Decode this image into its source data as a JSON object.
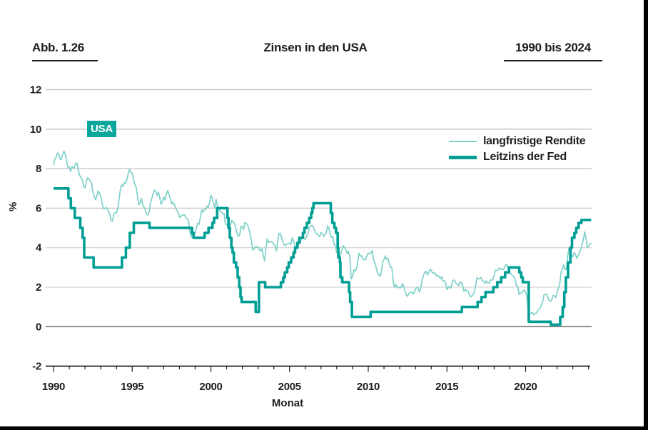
{
  "page": {
    "background": "#ffffff",
    "edge_bar_color": "#000000"
  },
  "header": {
    "fig_label": "Abb. 1.26",
    "title": "Zinsen in den USA",
    "range_label": "1990 bis 2024"
  },
  "badge": {
    "label": "USA",
    "bg": "#0ca79c",
    "fg": "#ffffff"
  },
  "legend": [
    {
      "label": "langfristige Rendite",
      "color": "#7fd0c9",
      "thickness": 2
    },
    {
      "label": "Leitzins der Fed",
      "color": "#009e95",
      "thickness": 5
    }
  ],
  "axis": {
    "ylabel": "%",
    "xlabel": "Monat",
    "text_color": "#1d1d1b",
    "zero_line_color": "#7a7a7a",
    "grid_color_upper": "#c2c2c2",
    "grid_color_lower": "#d8d8d8"
  },
  "chart_data": {
    "type": "line",
    "title": "Zinsen in den USA",
    "xlabel": "Monat",
    "ylabel": "%",
    "ylim": [
      -2,
      12
    ],
    "xlim": [
      1990,
      2024.3
    ],
    "yticks": [
      12,
      10,
      8,
      6,
      4,
      2,
      0,
      -2
    ],
    "xticks_major": [
      1990,
      1995,
      2000,
      2005,
      2010,
      2015,
      2020
    ],
    "xticks_minor_every_years": 1,
    "grid": "horizontal",
    "legend_position": "upper right",
    "series": [
      {
        "name": "langfristige Rendite",
        "style": "line",
        "color": "#7fd0c9",
        "width": 1.7,
        "x_start": 1990.0,
        "x_step": 0.0833333,
        "values": [
          8.21,
          8.47,
          8.59,
          8.79,
          8.76,
          8.48,
          8.47,
          8.75,
          8.89,
          8.72,
          8.39,
          8.08,
          8.09,
          7.85,
          8.11,
          8.04,
          8.07,
          8.28,
          8.27,
          7.9,
          7.65,
          7.53,
          7.42,
          7.09,
          7.03,
          7.34,
          7.54,
          7.48,
          7.39,
          7.26,
          6.84,
          6.59,
          6.42,
          6.59,
          6.87,
          6.77,
          6.6,
          6.26,
          5.98,
          5.97,
          6.04,
          5.96,
          5.81,
          5.68,
          5.36,
          5.33,
          5.72,
          5.77,
          5.75,
          5.97,
          6.48,
          6.97,
          7.18,
          7.1,
          7.3,
          7.24,
          7.46,
          7.74,
          7.96,
          7.81,
          7.78,
          7.47,
          7.2,
          7.06,
          6.63,
          6.17,
          6.28,
          6.49,
          6.2,
          6.04,
          5.93,
          5.71,
          5.65,
          5.81,
          6.27,
          6.51,
          6.74,
          6.91,
          6.87,
          6.64,
          6.83,
          6.53,
          6.2,
          6.3,
          6.58,
          6.42,
          6.69,
          6.89,
          6.71,
          6.49,
          6.22,
          6.3,
          6.21,
          6.03,
          5.88,
          5.81,
          5.54,
          5.57,
          5.65,
          5.64,
          5.65,
          5.5,
          5.46,
          5.34,
          4.81,
          4.53,
          4.83,
          4.65,
          4.72,
          5.0,
          5.23,
          5.18,
          5.54,
          5.9,
          5.79,
          5.94,
          5.92,
          6.11,
          6.03,
          6.28,
          6.66,
          6.52,
          6.26,
          5.99,
          6.44,
          6.1,
          6.05,
          5.83,
          5.8,
          5.74,
          5.72,
          5.24,
          5.16,
          5.1,
          4.89,
          5.14,
          5.39,
          5.28,
          5.24,
          4.97,
          4.73,
          4.57,
          4.65,
          5.09,
          5.04,
          4.91,
          5.28,
          5.21,
          5.16,
          4.93,
          4.65,
          4.26,
          3.87,
          3.94,
          4.05,
          4.03,
          4.05,
          3.9,
          3.81,
          3.96,
          3.57,
          3.33,
          3.98,
          4.45,
          4.27,
          4.29,
          4.3,
          4.27,
          4.15,
          4.08,
          3.83,
          4.35,
          4.72,
          4.73,
          4.5,
          4.28,
          4.13,
          4.1,
          4.19,
          4.23,
          4.22,
          4.17,
          4.5,
          4.34,
          4.14,
          4.0,
          4.18,
          4.26,
          4.2,
          4.46,
          4.54,
          4.47,
          4.42,
          4.57,
          4.72,
          4.99,
          5.11,
          5.11,
          5.09,
          4.88,
          4.72,
          4.73,
          4.6,
          4.56,
          4.76,
          4.72,
          4.56,
          4.69,
          4.75,
          5.1,
          5.0,
          4.67,
          4.52,
          4.53,
          4.15,
          4.1,
          3.74,
          3.74,
          3.51,
          3.68,
          3.88,
          4.1,
          4.01,
          3.89,
          3.69,
          3.81,
          3.53,
          2.42,
          2.52,
          2.87,
          2.82,
          2.93,
          3.29,
          3.72,
          3.56,
          3.59,
          3.4,
          3.39,
          3.4,
          3.59,
          3.73,
          3.69,
          3.73,
          3.85,
          3.42,
          3.2,
          3.01,
          2.7,
          2.65,
          2.54,
          2.76,
          3.29,
          3.39,
          3.58,
          3.41,
          3.46,
          3.17,
          3.0,
          3.0,
          2.3,
          1.98,
          2.15,
          2.01,
          1.98,
          1.97,
          1.97,
          2.17,
          2.05,
          1.8,
          1.62,
          1.53,
          1.68,
          1.72,
          1.75,
          1.65,
          1.72,
          1.91,
          1.98,
          1.96,
          1.76,
          1.93,
          2.3,
          2.58,
          2.74,
          2.81,
          2.62,
          2.72,
          2.9,
          2.86,
          2.71,
          2.72,
          2.71,
          2.56,
          2.6,
          2.54,
          2.42,
          2.53,
          2.3,
          2.33,
          2.21,
          1.88,
          1.98,
          2.04,
          1.94,
          2.2,
          2.36,
          2.32,
          2.17,
          2.17,
          2.07,
          2.26,
          2.24,
          2.09,
          1.78,
          1.89,
          1.81,
          1.81,
          1.64,
          1.5,
          1.56,
          1.63,
          1.76,
          2.14,
          2.49,
          2.43,
          2.42,
          2.48,
          2.3,
          2.3,
          2.19,
          2.32,
          2.21,
          2.2,
          2.36,
          2.35,
          2.4,
          2.58,
          2.86,
          2.84,
          2.87,
          2.98,
          2.91,
          2.89,
          2.89,
          3.0,
          3.15,
          3.12,
          2.83,
          2.71,
          2.68,
          2.57,
          2.53,
          2.4,
          2.07,
          2.06,
          1.63,
          1.7,
          1.71,
          1.81,
          1.86,
          1.76,
          1.5,
          0.87,
          0.66,
          0.67,
          0.73,
          0.62,
          0.65,
          0.68,
          0.79,
          0.87,
          0.93,
          1.08,
          1.26,
          1.61,
          1.64,
          1.62,
          1.52,
          1.32,
          1.28,
          1.37,
          1.58,
          1.56,
          1.47,
          1.76,
          1.93,
          2.13,
          2.75,
          2.9,
          3.14,
          2.9,
          2.9,
          3.52,
          3.98,
          3.89,
          3.62,
          3.53,
          3.75,
          3.66,
          3.46,
          3.57,
          3.75,
          3.9,
          4.17,
          4.38,
          4.8,
          4.5,
          4.02,
          4.06,
          4.21,
          4.21
        ]
      },
      {
        "name": "Leitzins der Fed",
        "style": "step",
        "color": "#009e95",
        "width": 3.6,
        "points": [
          [
            1990.0,
            7.0
          ],
          [
            1990.95,
            6.5
          ],
          [
            1991.1,
            6.0
          ],
          [
            1991.35,
            5.5
          ],
          [
            1991.7,
            5.0
          ],
          [
            1991.85,
            4.5
          ],
          [
            1991.95,
            3.5
          ],
          [
            1992.55,
            3.0
          ],
          [
            1994.35,
            3.5
          ],
          [
            1994.6,
            4.0
          ],
          [
            1994.85,
            4.75
          ],
          [
            1995.1,
            5.25
          ],
          [
            1996.1,
            5.0
          ],
          [
            1998.8,
            4.75
          ],
          [
            1998.9,
            4.5
          ],
          [
            1999.6,
            4.75
          ],
          [
            1999.85,
            5.0
          ],
          [
            2000.1,
            5.25
          ],
          [
            2000.2,
            5.5
          ],
          [
            2000.4,
            6.0
          ],
          [
            2001.05,
            5.5
          ],
          [
            2001.12,
            5.0
          ],
          [
            2001.2,
            4.5
          ],
          [
            2001.3,
            4.0
          ],
          [
            2001.38,
            3.75
          ],
          [
            2001.46,
            3.25
          ],
          [
            2001.6,
            3.0
          ],
          [
            2001.7,
            2.5
          ],
          [
            2001.8,
            2.0
          ],
          [
            2001.88,
            1.5
          ],
          [
            2001.95,
            1.25
          ],
          [
            2002.85,
            0.75
          ],
          [
            2003.05,
            2.25
          ],
          [
            2003.45,
            2.0
          ],
          [
            2004.45,
            2.25
          ],
          [
            2004.6,
            2.5
          ],
          [
            2004.7,
            2.75
          ],
          [
            2004.85,
            3.0
          ],
          [
            2004.95,
            3.25
          ],
          [
            2005.1,
            3.5
          ],
          [
            2005.25,
            3.75
          ],
          [
            2005.35,
            4.0
          ],
          [
            2005.5,
            4.25
          ],
          [
            2005.62,
            4.5
          ],
          [
            2005.85,
            4.75
          ],
          [
            2005.95,
            5.0
          ],
          [
            2006.1,
            5.25
          ],
          [
            2006.25,
            5.5
          ],
          [
            2006.37,
            5.75
          ],
          [
            2006.45,
            6.0
          ],
          [
            2006.52,
            6.25
          ],
          [
            2007.62,
            5.75
          ],
          [
            2007.72,
            5.25
          ],
          [
            2007.85,
            5.0
          ],
          [
            2007.95,
            4.75
          ],
          [
            2008.06,
            4.0
          ],
          [
            2008.1,
            3.5
          ],
          [
            2008.2,
            3.25
          ],
          [
            2008.23,
            2.5
          ],
          [
            2008.35,
            2.25
          ],
          [
            2008.78,
            1.75
          ],
          [
            2008.85,
            1.25
          ],
          [
            2008.96,
            0.5
          ],
          [
            2010.15,
            0.75
          ],
          [
            2015.95,
            1.0
          ],
          [
            2016.95,
            1.25
          ],
          [
            2017.2,
            1.5
          ],
          [
            2017.45,
            1.75
          ],
          [
            2017.95,
            2.0
          ],
          [
            2018.2,
            2.25
          ],
          [
            2018.45,
            2.5
          ],
          [
            2018.7,
            2.75
          ],
          [
            2018.95,
            3.0
          ],
          [
            2019.6,
            2.75
          ],
          [
            2019.72,
            2.5
          ],
          [
            2019.82,
            2.25
          ],
          [
            2020.2,
            0.25
          ],
          [
            2021.6,
            0.1
          ],
          [
            2022.2,
            0.5
          ],
          [
            2022.36,
            1.0
          ],
          [
            2022.46,
            1.75
          ],
          [
            2022.56,
            2.5
          ],
          [
            2022.7,
            3.25
          ],
          [
            2022.85,
            4.0
          ],
          [
            2022.95,
            4.5
          ],
          [
            2023.1,
            4.75
          ],
          [
            2023.22,
            5.0
          ],
          [
            2023.37,
            5.25
          ],
          [
            2023.55,
            5.4
          ],
          [
            2024.17,
            5.4
          ]
        ]
      }
    ]
  }
}
